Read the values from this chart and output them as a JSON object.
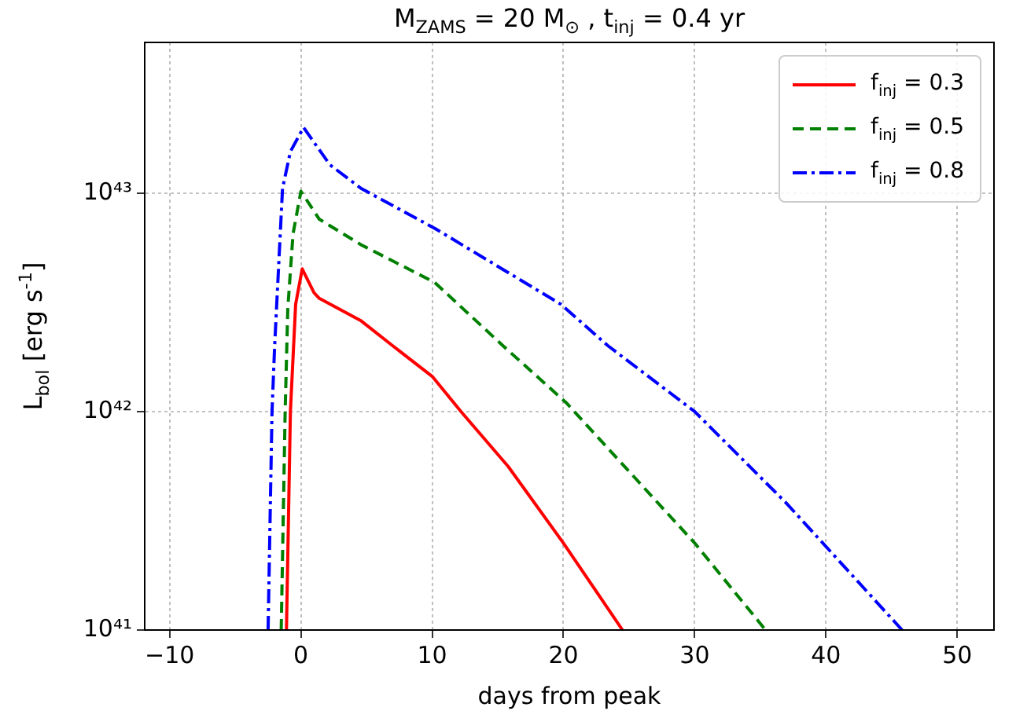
{
  "chart_data": {
    "type": "line",
    "title": "M$_{ZAMS}$ = 20 M$_{⊙}$ , t$_{inj}$ = 0.4 yr",
    "xlabel": "days from peak",
    "ylabel": "L$_{bol}$ [erg s$^{-1}$]",
    "log": "y",
    "grid": true,
    "legend": "top right",
    "marker": "none",
    "xlim": [
      -11.9,
      52.8
    ],
    "xticks": [
      -10,
      0,
      10,
      20,
      30,
      40,
      50
    ],
    "ylim": [
      1e+41,
      4.9e+43
    ],
    "yticks": [
      {
        "value": 1e+41,
        "label": "10⁴¹"
      },
      {
        "value": 1e+42,
        "label": "10⁴²"
      },
      {
        "value": 1e+43,
        "label": "10⁴³"
      }
    ],
    "series": [
      {
        "name": "f$_{inj}$ = 0.3",
        "color": "#ff0000",
        "line_style": "solid",
        "x": [
          -1.1,
          -0.8,
          -0.4,
          0.1,
          1.0,
          1.4,
          4.6,
          7.0,
          10,
          12.2,
          15.8,
          20,
          24.5
        ],
        "values": [
          1e+41,
          1e+42,
          3.1e+42,
          4.5e+42,
          3.5e+42,
          3.3e+42,
          2.6e+42,
          2e+42,
          1.45e+42,
          1e+42,
          5.6e+41,
          2.5e+41,
          1e+41
        ]
      },
      {
        "name": "f$_{inj}$ = 0.5",
        "color": "#008000",
        "line_style": "dashed",
        "x": [
          -1.5,
          -1.2,
          -1.0,
          -0.6,
          0.0,
          1.4,
          4.6,
          10.2,
          15.4,
          20.2,
          30,
          35.4
        ],
        "values": [
          1e+41,
          1e+42,
          2.95e+42,
          6.5e+42,
          1.02e+43,
          7.6e+42,
          5.8e+42,
          3.9e+42,
          2e+42,
          1.1e+42,
          2.5e+41,
          1e+41
        ]
      },
      {
        "name": "f$_{inj}$ = 0.8",
        "color": "#0000ff",
        "line_style": "dashdot",
        "x": [
          -2.5,
          -2.2,
          -2.0,
          -1.4,
          -0.8,
          0.2,
          2.2,
          4.6,
          10.2,
          19.8,
          23.4,
          30,
          37,
          45.8
        ],
        "values": [
          1e+41,
          1e+42,
          2e+42,
          1.05e+43,
          1.55e+43,
          2e+43,
          1.35e+43,
          1.05e+43,
          6.9e+42,
          3.1e+42,
          2e+42,
          1e+42,
          3.8e+41,
          1e+41
        ]
      }
    ]
  }
}
